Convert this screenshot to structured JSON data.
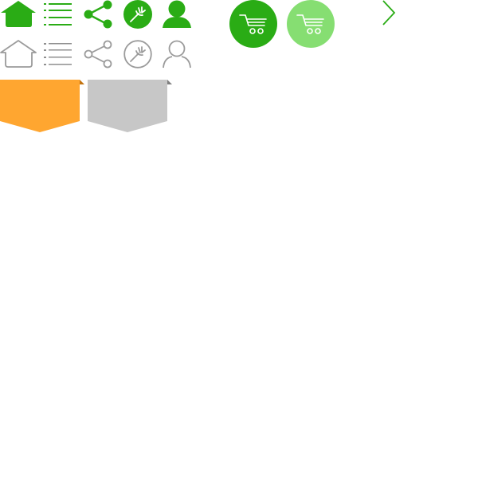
{
  "theme": {
    "accent_green": "#2aac15",
    "light_green": "#86de72",
    "outline_gray": "#9b9b9b",
    "badge_orange": "#ffa630",
    "badge_orange_fold": "#c47410",
    "badge_gray": "#c7c7c7",
    "badge_gray_fold": "#7f7f7f",
    "background": "#ffffff"
  },
  "icons_active": [
    {
      "name": "home-icon",
      "state": "filled"
    },
    {
      "name": "list-icon",
      "state": "filled"
    },
    {
      "name": "share-icon",
      "state": "filled"
    },
    {
      "name": "fork-icon",
      "state": "filled"
    },
    {
      "name": "user-icon",
      "state": "filled"
    }
  ],
  "icons_inactive": [
    {
      "name": "home-icon",
      "state": "outline"
    },
    {
      "name": "list-icon",
      "state": "outline"
    },
    {
      "name": "share-icon",
      "state": "outline"
    },
    {
      "name": "fork-icon",
      "state": "outline"
    },
    {
      "name": "user-icon",
      "state": "outline"
    }
  ],
  "cart_buttons": [
    {
      "name": "cart-icon",
      "state": "active"
    },
    {
      "name": "cart-icon",
      "state": "light"
    }
  ],
  "chevron": {
    "name": "chevron-right-icon"
  },
  "badges": [
    {
      "name": "ribbon-badge",
      "state": "orange"
    },
    {
      "name": "ribbon-badge",
      "state": "gray"
    }
  ]
}
